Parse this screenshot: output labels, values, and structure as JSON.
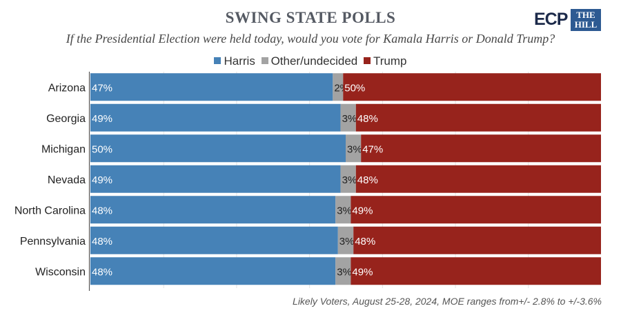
{
  "header": {
    "title": "SWING STATE POLLS",
    "subtitle": "If the Presidential Election were held today, would you vote for Kamala Harris or Donald Trump?",
    "logo_ecp": "ECP",
    "logo_hill": "THE HILL"
  },
  "footnote": "Likely Voters, August 25-28, 2024, MOE ranges from+/- 2.8% to +/-3.6%",
  "colors": {
    "harris": "#4682b7",
    "other": "#a3a3a3",
    "trump": "#97231c"
  },
  "chart_data": {
    "type": "bar",
    "orientation": "horizontal",
    "stacked": true,
    "title": "SWING STATE POLLS",
    "subtitle": "If the Presidential Election were held today, would you vote for Kamala Harris or Donald Trump?",
    "categories": [
      "Arizona",
      "Georgia",
      "Michigan",
      "Nevada",
      "North Carolina",
      "Pennsylvania",
      "Wisconsin"
    ],
    "series": [
      {
        "name": "Harris",
        "values": [
          47,
          49,
          50,
          49,
          48,
          48,
          48
        ],
        "labels": [
          "47%",
          "49%",
          "50%",
          "49%",
          "48%",
          "48%",
          "48%"
        ]
      },
      {
        "name": "Other/undecided",
        "values": [
          2,
          3,
          3,
          3,
          3,
          3,
          3
        ],
        "labels": [
          "2%",
          "3%",
          "3%",
          "3%",
          "3%",
          "3%",
          "3%"
        ]
      },
      {
        "name": "Trump",
        "values": [
          50,
          48,
          47,
          48,
          49,
          48,
          49
        ],
        "labels": [
          "50%",
          "48%",
          "47%",
          "48%",
          "49%",
          "48%",
          "49%"
        ]
      }
    ],
    "legend_position": "top-center",
    "xlabel": "",
    "ylabel": ""
  }
}
